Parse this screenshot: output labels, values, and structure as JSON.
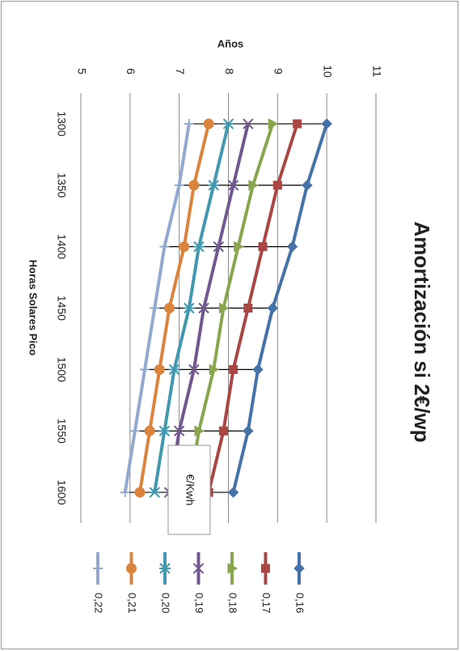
{
  "chart_data": {
    "type": "line",
    "title": "Amortización si 2€/wp",
    "x_label": "Horas Solares Pico",
    "y_label": "Años",
    "annotation": "€/Kwh",
    "categories": [
      "1300",
      "1350",
      "1400",
      "1450",
      "1500",
      "1550",
      "1600"
    ],
    "ylim": [
      5,
      11
    ],
    "yticks": [
      5,
      6,
      7,
      8,
      9,
      10,
      11
    ],
    "grid": true,
    "legend": "bottom",
    "series": [
      {
        "name": "0,16",
        "color": "#4572a7",
        "marker": "diamond",
        "values": [
          10.0,
          9.6,
          9.3,
          8.9,
          8.6,
          8.4,
          8.1
        ]
      },
      {
        "name": "0,17",
        "color": "#aa4643",
        "marker": "square",
        "values": [
          9.4,
          9.0,
          8.7,
          8.4,
          8.1,
          7.9,
          7.6
        ]
      },
      {
        "name": "0,18",
        "color": "#89a54e",
        "marker": "triangle",
        "values": [
          8.9,
          8.5,
          8.2,
          7.9,
          7.7,
          7.4,
          7.2
        ]
      },
      {
        "name": "0,19",
        "color": "#71588f",
        "marker": "x",
        "values": [
          8.4,
          8.1,
          7.8,
          7.5,
          7.3,
          7.0,
          6.8
        ]
      },
      {
        "name": "0,20",
        "color": "#4198af",
        "marker": "star",
        "values": [
          8.0,
          7.7,
          7.4,
          7.2,
          6.9,
          6.7,
          6.5
        ]
      },
      {
        "name": "0,21",
        "color": "#db843d",
        "marker": "circle",
        "values": [
          7.6,
          7.3,
          7.1,
          6.8,
          6.6,
          6.4,
          6.2
        ]
      },
      {
        "name": "0,22",
        "color": "#93a9cf",
        "marker": "plus",
        "values": [
          7.2,
          7.0,
          6.7,
          6.5,
          6.3,
          6.1,
          5.9
        ]
      }
    ]
  }
}
